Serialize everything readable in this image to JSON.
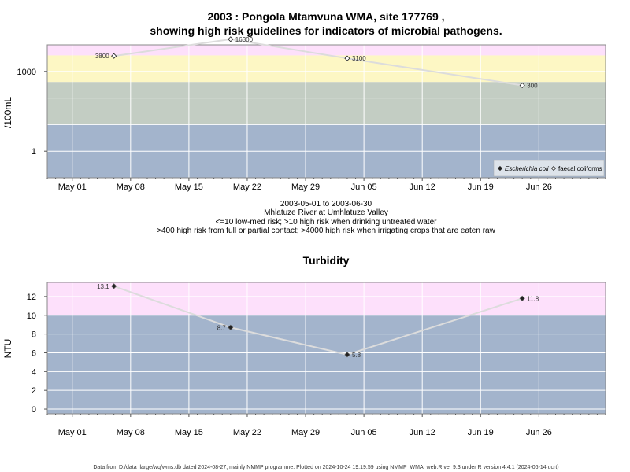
{
  "colors": {
    "background": "#ffffff",
    "band_pink": "#fde0fb",
    "band_yellow": "#fdf7c4",
    "band_grey": "#c3cdc3",
    "band_blue": "#a3b4cc",
    "gridline": "#ffffff",
    "series_line": "#dcdcdc",
    "frame": "#888888"
  },
  "chart_data": [
    {
      "type": "line",
      "title_line1": "2003 : Pongola Mtamvuna WMA, site 177769 ,",
      "title_line2": "showing high risk guidelines for indicators of microbial pathogens.",
      "ylabel": "/100mL",
      "y_scale": "log",
      "ylim": [
        0.1,
        10000
      ],
      "y_ticks": [
        {
          "value": 1,
          "label": "1"
        },
        {
          "value": 1000,
          "label": "1000"
        }
      ],
      "x_ticks": [
        "May 01",
        "May 08",
        "May 15",
        "May 22",
        "May 29",
        "Jun 05",
        "Jun 12",
        "Jun 19",
        "Jun 26"
      ],
      "xlim": [
        "2003-04-28",
        "2003-07-04"
      ],
      "risk_bands": [
        {
          "from": 4000,
          "to": 10000,
          "color": "band_pink"
        },
        {
          "from": 400,
          "to": 4000,
          "color": "band_yellow"
        },
        {
          "from": 10,
          "to": 400,
          "color": "band_grey"
        },
        {
          "from": 0.1,
          "to": 10,
          "color": "band_blue"
        }
      ],
      "series": [
        {
          "name": "faecal coliforms",
          "marker": "open-diamond",
          "points": [
            {
              "date": "2003-05-06",
              "value": 3800,
              "label": "3800"
            },
            {
              "date": "2003-05-20",
              "value": 16300,
              "label": "16300"
            },
            {
              "date": "2003-06-03",
              "value": 3100,
              "label": "3100"
            },
            {
              "date": "2003-06-24",
              "value": 300,
              "label": "300"
            }
          ]
        }
      ],
      "legend": {
        "position": "bottom-right",
        "entries": [
          {
            "label": "Escherichia coli",
            "marker": "filled-diamond"
          },
          {
            "label": "faecal coliforms",
            "marker": "open-diamond"
          }
        ]
      },
      "caption_lines": [
        "2003-05-01 to 2003-06-30",
        "Mhlatuze River at Umhlatuze Valley",
        "<=10 low-med risk; >10 high risk when drinking untreated water",
        ">400 high risk from full or partial contact; >4000 high risk when irrigating crops that are eaten raw"
      ]
    },
    {
      "type": "line",
      "title": "Turbidity",
      "ylabel": "NTU",
      "y_scale": "linear",
      "ylim": [
        -0.5,
        13.5
      ],
      "y_ticks": [
        0,
        2,
        4,
        6,
        8,
        10,
        12
      ],
      "x_ticks": [
        "May 01",
        "May 08",
        "May 15",
        "May 22",
        "May 29",
        "Jun 05",
        "Jun 12",
        "Jun 19",
        "Jun 26"
      ],
      "xlim": [
        "2003-04-28",
        "2003-07-04"
      ],
      "risk_bands": [
        {
          "from": 10,
          "to": 13.5,
          "color": "band_pink"
        },
        {
          "from": -0.5,
          "to": 10,
          "color": "band_blue"
        }
      ],
      "series": [
        {
          "marker": "filled-diamond",
          "points": [
            {
              "date": "2003-05-06",
              "value": 13.1,
              "label": "13.1"
            },
            {
              "date": "2003-05-20",
              "value": 8.7,
              "label": "8.7"
            },
            {
              "date": "2003-06-03",
              "value": 5.8,
              "label": "5.8"
            },
            {
              "date": "2003-06-24",
              "value": 11.8,
              "label": "11.8"
            }
          ]
        }
      ]
    }
  ],
  "footer": "Data from D:/data_large/wq/wms.db dated 2024-08-27, mainly NMMP programme. Plotted on 2024-10-24 19:19:59 using NMMP_WMA_web.R ver 9.3 under R version 4.4.1 (2024-06-14 ucrt)"
}
